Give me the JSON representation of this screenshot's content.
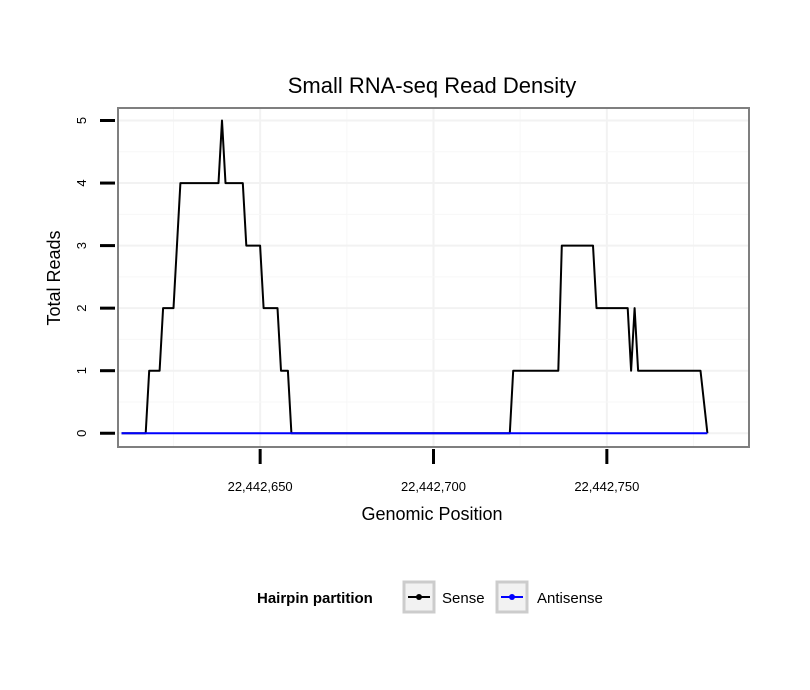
{
  "chart_data": {
    "type": "line",
    "title": "Small RNA-seq Read Density",
    "xlabel": "Genomic Position",
    "ylabel": "Total Reads",
    "xlim": [
      22442609,
      22442791
    ],
    "ylim": [
      -0.22,
      5.2
    ],
    "x_ticks": [
      22442650,
      22442700,
      22442750
    ],
    "x_tick_labels": [
      "22,442,650",
      "22,442,700",
      "22,442,750"
    ],
    "y_ticks": [
      0,
      1,
      2,
      3,
      4,
      5
    ],
    "y_tick_labels": [
      "0",
      "1",
      "2",
      "3",
      "4",
      "5"
    ],
    "grid": true,
    "legend": {
      "title": "Hairpin partition",
      "position": "bottom"
    },
    "series": [
      {
        "name": "Sense",
        "color": "#000000",
        "x": [
          22442610,
          22442617,
          22442618,
          22442621,
          22442622,
          22442625,
          22442627,
          22442638,
          22442639,
          22442640,
          22442645,
          22442646,
          22442650,
          22442651,
          22442655,
          22442656,
          22442658,
          22442659,
          22442661,
          22442722,
          22442723,
          22442736,
          22442737,
          22442746,
          22442747,
          22442756,
          22442757,
          22442758,
          22442759,
          22442777,
          22442779
        ],
        "values": [
          0,
          0,
          1,
          1,
          2,
          2,
          4,
          4,
          5,
          4,
          4,
          3,
          3,
          2,
          2,
          1,
          1,
          0,
          0,
          0,
          1,
          1,
          3,
          3,
          2,
          2,
          1,
          2,
          1,
          1,
          0
        ]
      },
      {
        "name": "Antisense",
        "color": "#0000ff",
        "x": [
          22442610,
          22442779
        ],
        "values": [
          0,
          0
        ]
      }
    ]
  }
}
